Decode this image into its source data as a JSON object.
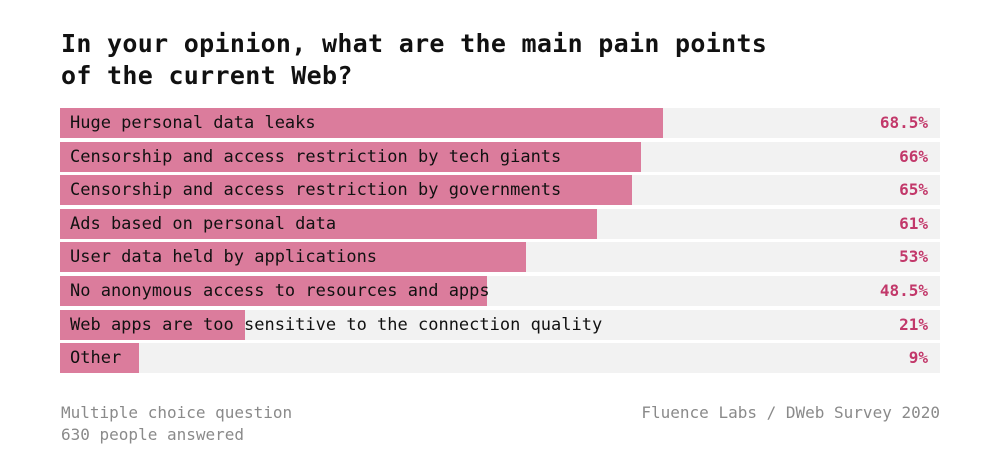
{
  "chart_data": {
    "type": "bar",
    "orientation": "horizontal",
    "title": "In your opinion, what are the main pain points of the current Web?",
    "title_lines": [
      "In your opinion, what are the main pain points",
      "of the current Web?"
    ],
    "categories": [
      "Huge personal data leaks",
      "Censorship and access restriction by tech giants",
      "Censorship and access restriction by governments",
      "Ads based on personal data",
      "User data held by applications",
      "No anonymous access to resources and apps",
      "Web apps are too sensitive to the connection quality",
      "Other"
    ],
    "values": [
      68.5,
      66,
      65,
      61,
      53,
      48.5,
      21,
      9
    ],
    "value_labels": [
      "68.5%",
      "66%",
      "65%",
      "61%",
      "53%",
      "48.5%",
      "21%",
      "9%"
    ],
    "xlim": [
      0,
      100
    ],
    "unit": "%",
    "grid": false
  },
  "footer": {
    "note_line1": "Multiple choice question",
    "note_line2": "630 people answered",
    "source": "Fluence Labs / DWeb Survey 2020"
  },
  "colors": {
    "bar": "#db7c9c",
    "track": "#f2f2f2",
    "value_text": "#c2386a",
    "footer_text": "#8a8a8a"
  }
}
